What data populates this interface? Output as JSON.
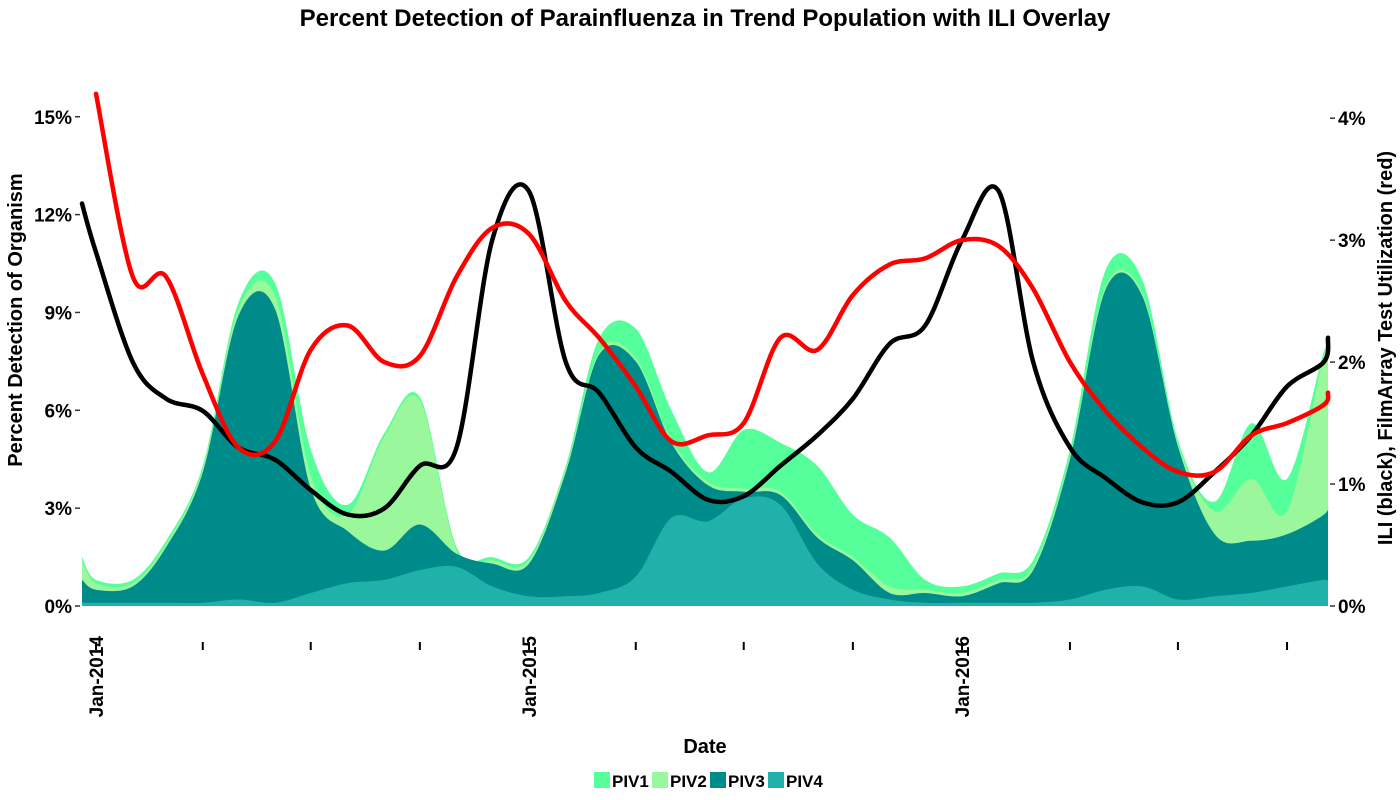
{
  "chart_data": {
    "type": "area",
    "title": "Percent Detection of Parainfluenza in Trend Population with ILI Overlay",
    "xlabel": "Date",
    "ylabel": "Percent Detection of Organism",
    "y2label": "ILI (black), FilmArray Test Utilization (red)",
    "x_tick_labels": [
      "Jan-2014",
      "Jan-2015",
      "Jan-2016"
    ],
    "x_tick_dates": [
      "2014-01",
      "2015-01",
      "2016-01"
    ],
    "x_minor_tick_dates": [
      "2014-04",
      "2014-07",
      "2014-10",
      "2015-04",
      "2015-07",
      "2015-10",
      "2016-04",
      "2016-07",
      "2016-10"
    ],
    "ylim": [
      0,
      17.2
    ],
    "yticks": [
      "0%",
      "3%",
      "6%",
      "9%",
      "12%",
      "15%"
    ],
    "y2lim": [
      0,
      4.6
    ],
    "y2ticks": [
      "0%",
      "1%",
      "2%",
      "3%",
      "4%"
    ],
    "x_dates": [
      "2013-12",
      "2014-01",
      "2014-02",
      "2014-03",
      "2014-04",
      "2014-05",
      "2014-06",
      "2014-07",
      "2014-08",
      "2014-09",
      "2014-10",
      "2014-11",
      "2014-12",
      "2015-01",
      "2015-02",
      "2015-03",
      "2015-04",
      "2015-05",
      "2015-06",
      "2015-07",
      "2015-08",
      "2015-09",
      "2015-10",
      "2015-11",
      "2015-12",
      "2016-01",
      "2016-02",
      "2016-03",
      "2016-04",
      "2016-05",
      "2016-06",
      "2016-07",
      "2016-08",
      "2016-09",
      "2016-10",
      "2016-11",
      "2016-12"
    ],
    "legend_position": "bottom",
    "stacked_series": [
      {
        "name": "PIV1",
        "color": "#55FF99",
        "values": [
          0.1,
          0.1,
          0.1,
          0.1,
          0.1,
          0.2,
          0.4,
          0.8,
          0.3,
          0.1,
          0.1,
          0.1,
          0.1,
          0.1,
          0.1,
          0.4,
          0.9,
          0.9,
          0.3,
          1.8,
          1.5,
          2.1,
          1.3,
          1.5,
          0.3,
          0.2,
          0.2,
          0.2,
          0.2,
          0.5,
          0.4,
          0.1,
          0.3,
          1.7,
          1.0,
          0.1,
          0.1
        ]
      },
      {
        "name": "PIV2",
        "color": "#9BF79B",
        "values": [
          0.6,
          0.2,
          0.1,
          0.1,
          0.1,
          0.2,
          0.4,
          0.4,
          0.5,
          3.5,
          3.8,
          0.1,
          0.1,
          0.1,
          0.1,
          0.1,
          0.1,
          0.1,
          0.1,
          0.1,
          0.1,
          0.1,
          0.1,
          0.2,
          0.1,
          0.1,
          0.1,
          0.1,
          0.1,
          0.1,
          0.1,
          0.1,
          0.7,
          1.9,
          0.7,
          4.9,
          4.2
        ]
      },
      {
        "name": "PIV3",
        "color": "#008B8B",
        "values": [
          0.7,
          0.4,
          0.5,
          1.7,
          4.0,
          8.7,
          9.0,
          3.2,
          1.6,
          0.9,
          1.4,
          0.4,
          0.7,
          1.0,
          3.8,
          7.3,
          6.6,
          2.3,
          1.1,
          0.2,
          0.3,
          0.8,
          0.9,
          0.2,
          0.3,
          0.2,
          0.6,
          1.0,
          4.3,
          9.2,
          8.9,
          4.7,
          1.9,
          1.6,
          1.6,
          2.0,
          2.4
        ]
      },
      {
        "name": "PIV4",
        "color": "#20B2AA",
        "values": [
          0.1,
          0.1,
          0.1,
          0.1,
          0.1,
          0.2,
          0.1,
          0.4,
          0.7,
          0.8,
          1.1,
          1.2,
          0.6,
          0.3,
          0.3,
          0.4,
          0.9,
          2.7,
          2.6,
          3.3,
          3.1,
          1.3,
          0.5,
          0.2,
          0.1,
          0.1,
          0.1,
          0.1,
          0.2,
          0.5,
          0.6,
          0.2,
          0.3,
          0.4,
          0.6,
          0.8,
          0.7
        ]
      }
    ],
    "overlay_series": [
      {
        "name": "ILI",
        "color": "#000000",
        "axis": "right",
        "x": [
          "2013-12",
          "2014-01",
          "2014-02",
          "2014-03",
          "2014-04",
          "2014-05",
          "2014-06",
          "2014-07",
          "2014-08",
          "2014-09",
          "2014-10",
          "2014-11",
          "2014-12",
          "2015-01",
          "2015-02",
          "2015-03",
          "2015-04",
          "2015-05",
          "2015-06",
          "2015-07",
          "2015-08",
          "2015-09",
          "2015-10",
          "2015-11",
          "2015-12",
          "2016-01",
          "2016-02",
          "2016-03",
          "2016-04",
          "2016-05",
          "2016-06",
          "2016-07",
          "2016-08",
          "2016-09",
          "2016-10",
          "2016-11",
          "2016-12"
        ],
        "values": [
          3.3,
          2.9,
          2.0,
          1.7,
          1.6,
          1.3,
          1.2,
          0.95,
          0.75,
          0.8,
          1.15,
          1.3,
          3.0,
          3.4,
          2.0,
          1.75,
          1.3,
          1.1,
          0.87,
          0.9,
          1.15,
          1.4,
          1.7,
          2.15,
          2.3,
          3.0,
          3.4,
          2.0,
          1.3,
          1.05,
          0.85,
          0.85,
          1.1,
          1.4,
          1.8,
          2.0,
          2.2
        ]
      },
      {
        "name": "FilmArray Test Utilization",
        "color": "#FF0000",
        "axis": "right",
        "x": [
          "2014-01",
          "2014-02",
          "2014-03",
          "2014-04",
          "2014-05",
          "2014-06",
          "2014-07",
          "2014-08",
          "2014-09",
          "2014-10",
          "2014-11",
          "2014-12",
          "2015-01",
          "2015-02",
          "2015-03",
          "2015-04",
          "2015-05",
          "2015-06",
          "2015-07",
          "2015-08",
          "2015-09",
          "2015-10",
          "2015-11",
          "2015-12",
          "2016-01",
          "2016-02",
          "2016-03",
          "2016-04",
          "2016-05",
          "2016-06",
          "2016-07",
          "2016-08",
          "2016-09",
          "2016-10",
          "2016-11",
          "2016-12"
        ],
        "values": [
          4.2,
          2.7,
          2.7,
          1.9,
          1.3,
          1.35,
          2.1,
          2.3,
          2.0,
          2.05,
          2.7,
          3.1,
          3.05,
          2.5,
          2.2,
          1.8,
          1.35,
          1.4,
          1.5,
          2.2,
          2.1,
          2.55,
          2.8,
          2.85,
          3.0,
          2.95,
          2.6,
          2.0,
          1.6,
          1.3,
          1.1,
          1.1,
          1.4,
          1.5,
          1.65,
          1.75
        ]
      }
    ]
  }
}
